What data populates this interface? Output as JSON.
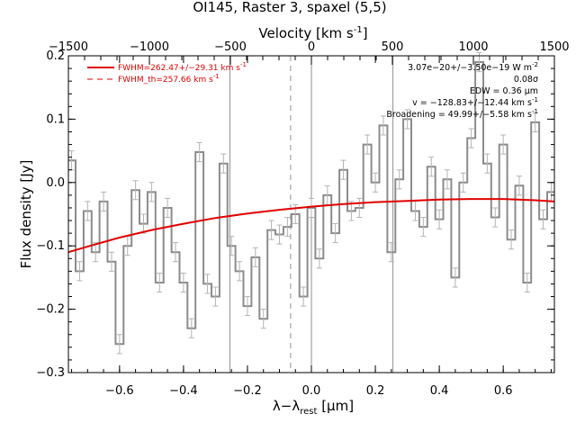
{
  "chart_data": {
    "type": "line",
    "title": "OI145, Raster 3, spaxel (5,5)",
    "xlabel": "λ−λrest [μm]",
    "xlabel_parts": {
      "main": "λ−λ",
      "sub": "rest",
      "unit": " [μm]"
    },
    "ylabel": "Flux density [Jy]",
    "top_axis_label": "Velocity [km s⁻¹]",
    "top_axis_label_parts": {
      "main": "Velocity [km s",
      "sup": "-1",
      "close": "]"
    },
    "xlim": [
      -0.76,
      0.76
    ],
    "ylim": [
      -0.3,
      0.2
    ],
    "top_xlim": [
      -1500,
      1500
    ],
    "x_ticks": [
      -0.6,
      -0.4,
      -0.2,
      0.0,
      0.2,
      0.4,
      0.6
    ],
    "x_tick_labels": [
      "−0.6",
      "−0.4",
      "−0.2",
      "0.0",
      "0.2",
      "0.4",
      "0.6"
    ],
    "y_ticks": [
      -0.3,
      -0.2,
      -0.1,
      0.0,
      0.1,
      0.2
    ],
    "y_tick_labels": [
      "−0.3",
      "−0.2",
      "−0.1",
      "0.0",
      "0.1",
      "0.2"
    ],
    "top_ticks": [
      -1500,
      -1000,
      -500,
      0,
      500,
      1000,
      1500
    ],
    "top_tick_labels": [
      "−1500",
      "−1000",
      "−500",
      "0",
      "500",
      "1000",
      "1500"
    ],
    "vertical_lines": [
      {
        "x": -0.255,
        "style": "solid"
      },
      {
        "x": -0.065,
        "style": "dashed"
      },
      {
        "x": 0.0,
        "style": "solid"
      },
      {
        "x": 0.255,
        "style": "solid"
      }
    ],
    "spectrum": {
      "style": "step",
      "x": [
        -0.75,
        -0.725,
        -0.7,
        -0.675,
        -0.65,
        -0.625,
        -0.6,
        -0.575,
        -0.55,
        -0.525,
        -0.5,
        -0.475,
        -0.45,
        -0.425,
        -0.4,
        -0.375,
        -0.35,
        -0.325,
        -0.3,
        -0.275,
        -0.25,
        -0.225,
        -0.2,
        -0.175,
        -0.15,
        -0.125,
        -0.1,
        -0.075,
        -0.05,
        -0.025,
        0.0,
        0.025,
        0.05,
        0.075,
        0.1,
        0.125,
        0.15,
        0.175,
        0.2,
        0.225,
        0.25,
        0.275,
        0.3,
        0.325,
        0.35,
        0.375,
        0.4,
        0.425,
        0.45,
        0.475,
        0.5,
        0.525,
        0.55,
        0.575,
        0.6,
        0.625,
        0.65,
        0.675,
        0.7,
        0.725,
        0.75
      ],
      "y": [
        0.035,
        -0.14,
        -0.045,
        -0.11,
        -0.03,
        -0.125,
        -0.255,
        -0.1,
        -0.012,
        -0.065,
        -0.015,
        -0.158,
        -0.04,
        -0.11,
        -0.158,
        -0.23,
        0.048,
        -0.16,
        -0.18,
        0.03,
        -0.1,
        -0.14,
        -0.195,
        -0.118,
        -0.215,
        -0.075,
        -0.082,
        -0.07,
        -0.05,
        -0.18,
        -0.04,
        -0.12,
        -0.02,
        -0.08,
        0.02,
        -0.045,
        -0.04,
        0.06,
        0.0,
        0.09,
        -0.11,
        0.005,
        0.1,
        -0.045,
        -0.07,
        0.025,
        -0.058,
        0.005,
        -0.15,
        0.0,
        0.07,
        0.19,
        0.03,
        -0.055,
        0.06,
        -0.09,
        -0.005,
        -0.158,
        0.095,
        -0.058,
        -0.015
      ],
      "error": 0.015
    },
    "fit_curve": {
      "x": [
        -0.76,
        -0.7,
        -0.6,
        -0.5,
        -0.4,
        -0.3,
        -0.2,
        -0.1,
        0.0,
        0.1,
        0.2,
        0.3,
        0.4,
        0.5,
        0.6,
        0.7,
        0.76
      ],
      "y": [
        -0.11,
        -0.101,
        -0.087,
        -0.075,
        -0.065,
        -0.056,
        -0.049,
        -0.043,
        -0.038,
        -0.034,
        -0.031,
        -0.029,
        -0.027,
        -0.026,
        -0.026,
        -0.028,
        -0.03
      ]
    },
    "legend": {
      "placement": "top-left",
      "entries": [
        {
          "text": "FWHM=262.47+/−29.31 km s",
          "sup": "-1",
          "line": "solid"
        },
        {
          "text": "FWHM_th=257.66 km s",
          "sup": "-1",
          "line": "dashed"
        }
      ]
    },
    "annotations": [
      {
        "text": "3.07e−20+/−3.50e−19 W m",
        "sup": "-2"
      },
      {
        "text": "0.08σ",
        "sup": ""
      },
      {
        "text": "EDW = 0.36 μm",
        "sup": ""
      },
      {
        "text": "v = −128.83+/−12.44 km s",
        "sup": "-1"
      },
      {
        "text": "Broadening = 49.99+/−5.58 km s",
        "sup": "-1"
      }
    ],
    "colors": {
      "spectrum": "#8c8c8c",
      "fit": "#e00000",
      "legend_text": "#e00000",
      "vlines": "#909090"
    },
    "grid": false
  }
}
